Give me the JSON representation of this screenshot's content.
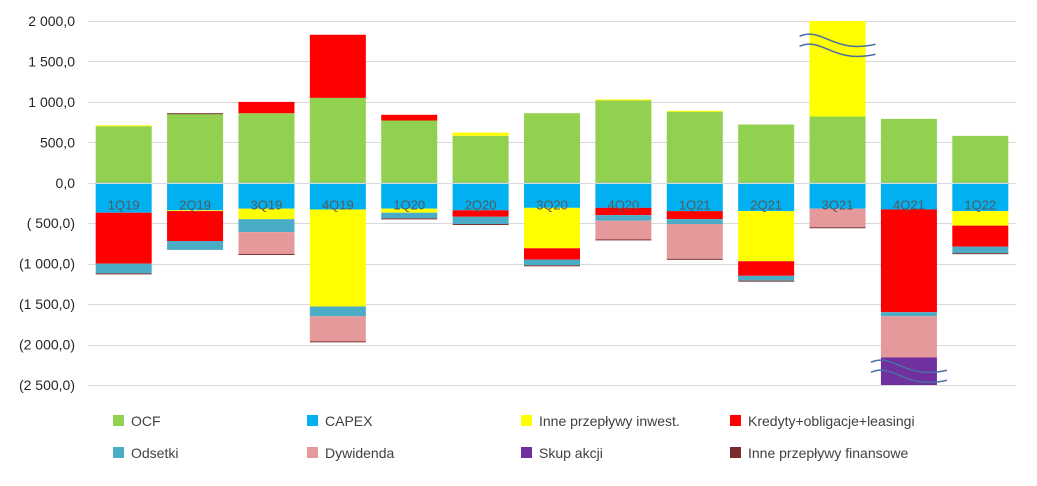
{
  "chart_data": {
    "type": "bar",
    "stacked": true,
    "title": "",
    "xlabel": "",
    "ylabel": "",
    "ylim": [
      -2500,
      2000
    ],
    "ytick_values": [
      2000,
      1500,
      1000,
      500,
      0,
      -500,
      -1000,
      -1500,
      -2000,
      -2500
    ],
    "ytick_labels": [
      "2 000,0",
      "1 500,0",
      "1 000,0",
      "500,0",
      "0,0",
      "( 500,0)",
      "(1 000,0)",
      "(1 500,0)",
      "(2 000,0)",
      "(2 500,0)"
    ],
    "grid": true,
    "legend_position": "bottom",
    "categories": [
      "1Q19",
      "2Q19",
      "3Q19",
      "4Q19",
      "1Q20",
      "2Q20",
      "3Q20",
      "4Q20",
      "1Q21",
      "2Q21",
      "3Q21",
      "4Q21",
      "1Q22"
    ],
    "axis_breaks": [
      {
        "category": "3Q21",
        "value": 1700
      },
      {
        "category": "4Q21",
        "value": -2330
      }
    ],
    "series": [
      {
        "name": "OCF",
        "color": "#92d050",
        "values": [
          700,
          850,
          860,
          1050,
          770,
          580,
          860,
          1020,
          880,
          720,
          820,
          790,
          580
        ]
      },
      {
        "name": "CAPEX",
        "color": "#00b0f0",
        "values": [
          -370,
          -340,
          -320,
          -330,
          -320,
          -340,
          -310,
          -310,
          -350,
          -350,
          -320,
          -330,
          -350
        ]
      },
      {
        "name": "Inne przepływy inwest.",
        "color": "#ffff00",
        "values": [
          10,
          -10,
          -130,
          -1200,
          -50,
          40,
          -500,
          10,
          10,
          -620,
          1180,
          0,
          -180
        ]
      },
      {
        "name": "Kredyty+obligacje+leasingi",
        "color": "#ff0000",
        "values": [
          -630,
          -370,
          140,
          780,
          70,
          -80,
          -140,
          -90,
          -100,
          -180,
          0,
          -1270,
          -260
        ]
      },
      {
        "name": "Odsetki",
        "color": "#4bacc6",
        "values": [
          -120,
          -110,
          -160,
          -120,
          -70,
          -90,
          -70,
          -70,
          -60,
          -60,
          0,
          -50,
          -80
        ]
      },
      {
        "name": "Dywidenda",
        "color": "#e6999a",
        "values": [
          0,
          0,
          -270,
          -310,
          0,
          0,
          0,
          -230,
          -430,
          0,
          -230,
          -510,
          0
        ]
      },
      {
        "name": "Skup akcji",
        "color": "#7030a0",
        "values": [
          0,
          0,
          0,
          0,
          0,
          0,
          0,
          0,
          0,
          0,
          0,
          -350,
          0
        ]
      },
      {
        "name": "Inne przepływy finansowe",
        "color": "#7b2c2c",
        "values": [
          -10,
          10,
          -10,
          -10,
          -10,
          -10,
          -10,
          -10,
          -10,
          -10,
          -10,
          0,
          -10
        ]
      }
    ]
  }
}
